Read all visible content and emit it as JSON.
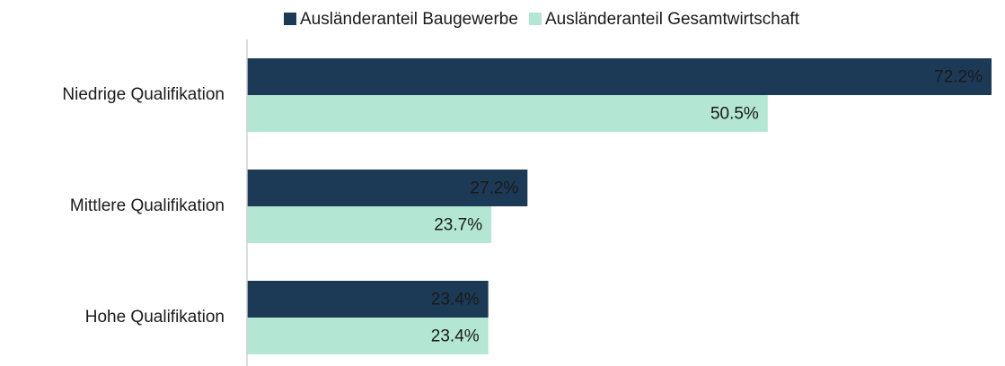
{
  "chart_data": {
    "type": "bar",
    "orientation": "horizontal",
    "categories": [
      "Niedrige Qualifikation",
      "Mittlere Qualifikation",
      "Hohe Qualifikation"
    ],
    "series": [
      {
        "name": "Ausländeranteil Baugewerbe",
        "color": "#1c3a55",
        "values": [
          72.2,
          27.2,
          23.4
        ],
        "value_labels": [
          "72.2%",
          "27.2%",
          "23.4%"
        ]
      },
      {
        "name": "Ausländeranteil Gesamtwirtschaft",
        "color": "#b3e6d3",
        "values": [
          50.5,
          23.7,
          23.4
        ],
        "value_labels": [
          "50.5%",
          "23.7%",
          "23.4%"
        ]
      }
    ],
    "legend": "top"
  }
}
